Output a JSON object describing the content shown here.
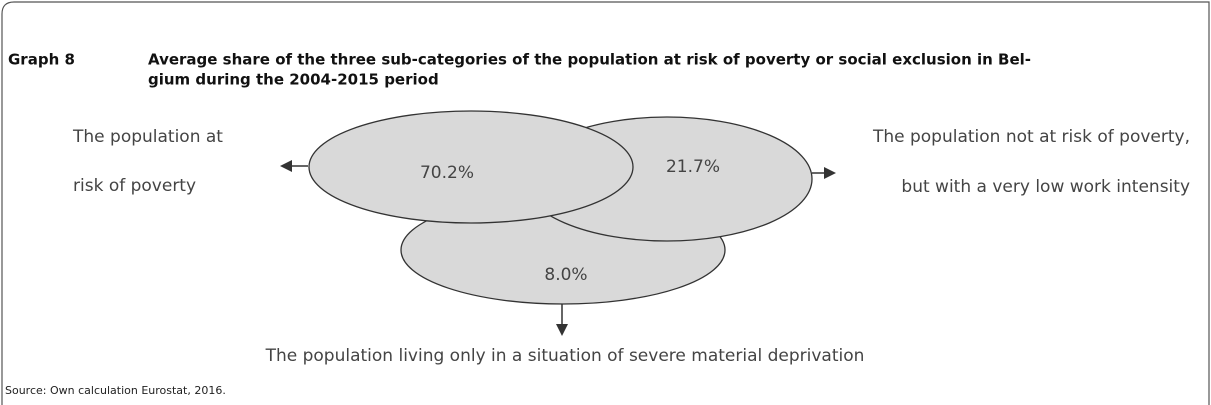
{
  "graph": {
    "label": "Graph 8",
    "title_lines": [
      "Average share of the three sub-categories of the population at risk of poverty or social exclusion in Bel-",
      "gium during the 2004-2015 period"
    ]
  },
  "sets": [
    {
      "label_lines": [
        "The population at",
        "risk of poverty"
      ],
      "share": "70.2%"
    },
    {
      "label_lines": [
        "The population not at risk of poverty,",
        "but with a very low work intensity"
      ],
      "share": "21.7%"
    },
    {
      "label_lines": [
        "The population living only in a situation of severe material deprivation"
      ],
      "share": "8.0%"
    }
  ],
  "source": "Source: Own calculation Eurostat, 2016."
}
